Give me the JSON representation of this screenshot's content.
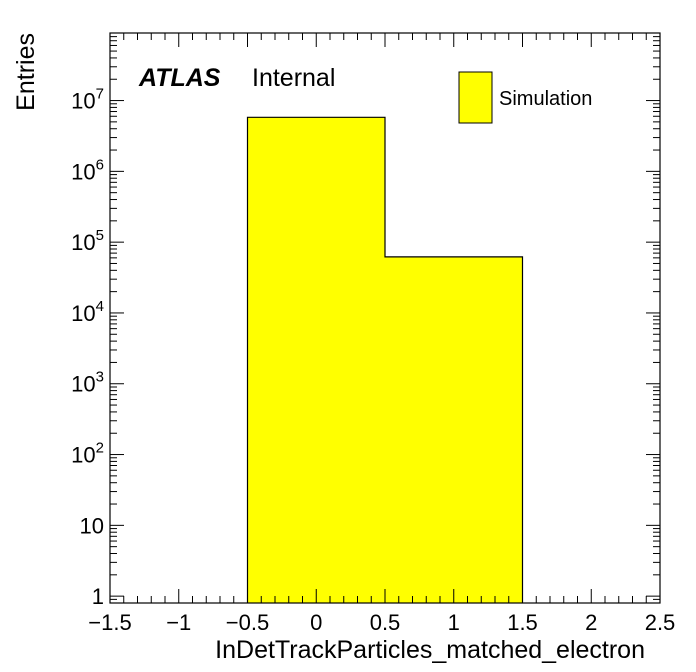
{
  "chart_data": {
    "type": "bar",
    "histogram": true,
    "bins": [
      {
        "low": -0.5,
        "high": 0.5,
        "value": 5800000
      },
      {
        "low": 0.5,
        "high": 1.5,
        "value": 62000
      }
    ],
    "xlabel": "InDetTrackParticles_matched_electron",
    "ylabel": "Entries",
    "xlim": [
      -1.5,
      2.5
    ],
    "ylim": [
      0.8,
      90000000
    ],
    "yscale": "log",
    "x_ticks": [
      "−1.5",
      "−1",
      "−0.5",
      "0",
      "0.5",
      "1",
      "1.5",
      "2",
      "2.5"
    ],
    "y_ticks": [
      {
        "value": 1,
        "base": "1",
        "exp": ""
      },
      {
        "value": 10,
        "base": "10",
        "exp": ""
      },
      {
        "value": 100,
        "base": "10",
        "exp": "2"
      },
      {
        "value": 1000,
        "base": "10",
        "exp": "3"
      },
      {
        "value": 10000,
        "base": "10",
        "exp": "4"
      },
      {
        "value": 100000,
        "base": "10",
        "exp": "5"
      },
      {
        "value": 1000000,
        "base": "10",
        "exp": "6"
      },
      {
        "value": 10000000,
        "base": "10",
        "exp": "7"
      }
    ],
    "grid": false,
    "legend": {
      "placement": "top-right",
      "entries": [
        {
          "label": "Simulation",
          "color": "#ffff00"
        }
      ]
    },
    "annotation": {
      "experiment": "ATLAS",
      "status": "Internal"
    },
    "fill_color": "#ffff00",
    "line_color": "#000000"
  }
}
